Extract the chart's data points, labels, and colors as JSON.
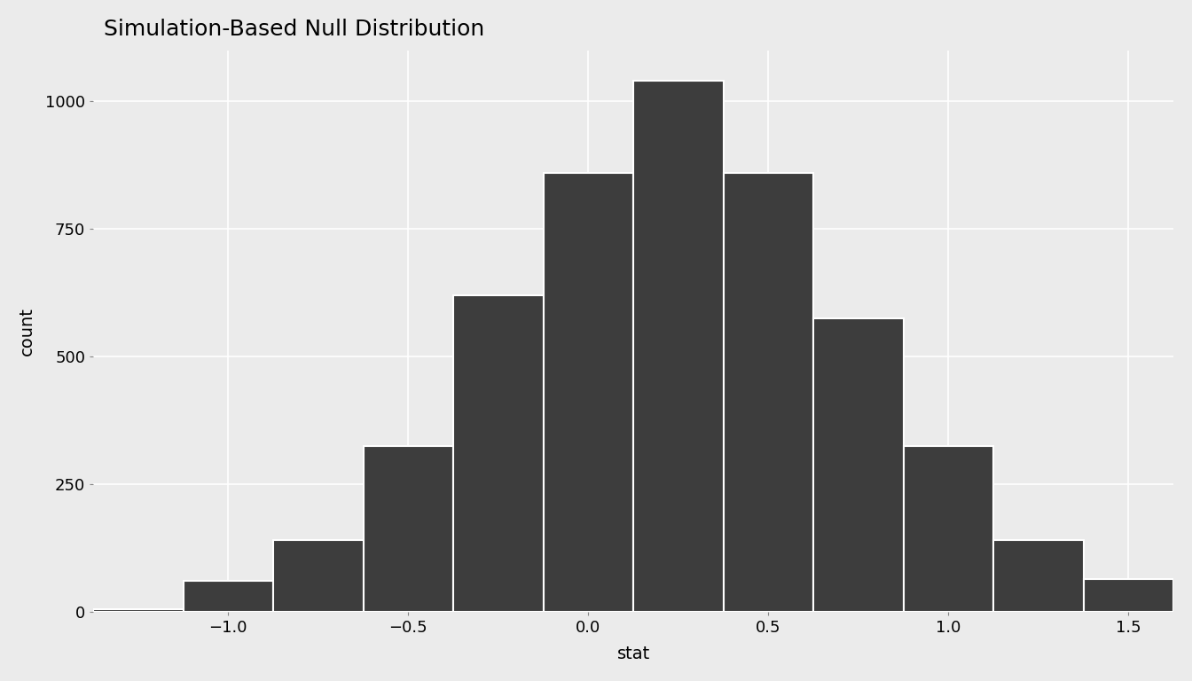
{
  "title": "Simulation-Based Null Distribution",
  "xlabel": "stat",
  "ylabel": "count",
  "bar_color": "#3d3d3d",
  "bar_edge_color": "white",
  "background_color": "#ebebeb",
  "plot_background_color": "#ebebeb",
  "grid_color": "white",
  "xlim": [
    -1.375,
    1.625
  ],
  "ylim": [
    0,
    1100
  ],
  "xticks": [
    -1.0,
    -0.5,
    0.0,
    0.5,
    1.0,
    1.5
  ],
  "yticks": [
    0,
    250,
    500,
    750,
    1000
  ],
  "title_fontsize": 18,
  "axis_label_fontsize": 14,
  "tick_fontsize": 13,
  "bin_left_edges": [
    -1.375,
    -1.125,
    -0.875,
    -0.625,
    -0.375,
    -0.125,
    0.125,
    0.375,
    0.625,
    0.875,
    1.125,
    1.375
  ],
  "bar_heights": [
    5,
    60,
    140,
    325,
    620,
    860,
    1040,
    860,
    575,
    325,
    140,
    65
  ],
  "bar_width": 0.25
}
